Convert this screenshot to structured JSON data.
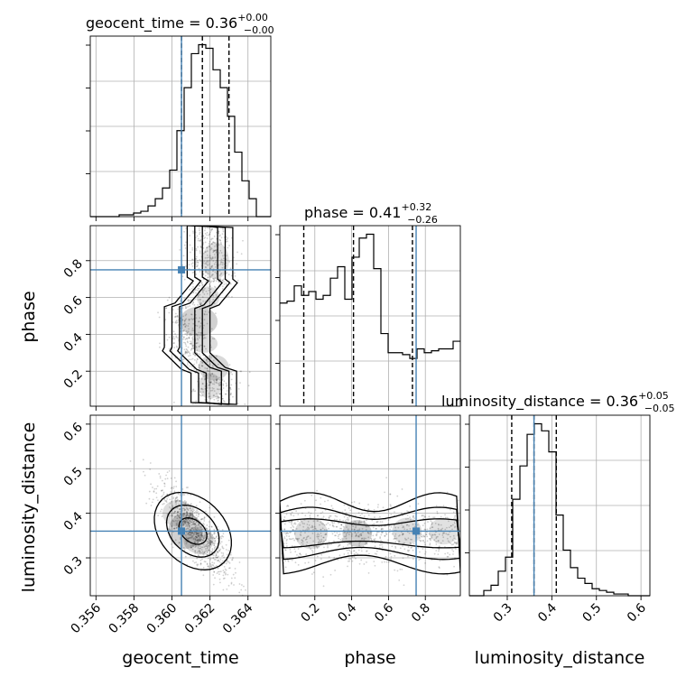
{
  "chart_data": {
    "type": "corner",
    "parameters": [
      "geocent_time",
      "phase",
      "luminosity_distance"
    ],
    "titles": [
      {
        "name": "geocent_time",
        "median": "0.36",
        "plus": "+0.00",
        "minus": "−0.00"
      },
      {
        "name": "phase",
        "median": "0.41",
        "plus": "+0.32",
        "minus": "−0.26"
      },
      {
        "name": "luminosity_distance",
        "median": "0.36",
        "plus": "+0.05",
        "minus": "−0.05"
      }
    ],
    "ranges": {
      "geocent_time": [
        0.3557,
        0.3652
      ],
      "phase": [
        0.01,
        0.99
      ],
      "luminosity_distance": [
        0.215,
        0.62
      ]
    },
    "ticks": {
      "geocent_time": [
        "0.356",
        "0.358",
        "0.360",
        "0.362",
        "0.364"
      ],
      "phase_x": [
        "0.2",
        "0.4",
        "0.6",
        "0.8"
      ],
      "phase_y": [
        "0.2",
        "0.4",
        "0.6",
        "0.8"
      ],
      "luminosity_distance_x": [
        "0.3",
        "0.4",
        "0.5",
        "0.6"
      ],
      "luminosity_distance_y": [
        "0.3",
        "0.4",
        "0.5",
        "0.6"
      ]
    },
    "truths": {
      "geocent_time": 0.3605,
      "phase": 0.75,
      "luminosity_distance": 0.36,
      "color": "#4682b4"
    },
    "quantiles": {
      "geocent_time": [
        0.3605,
        0.3616,
        0.363
      ],
      "phase": [
        0.14,
        0.41,
        0.73
      ],
      "luminosity_distance": [
        0.31,
        0.36,
        0.41
      ]
    },
    "histograms": {
      "geocent_time": {
        "edges_start": 0.3557,
        "edges_end": 0.3652,
        "counts": [
          0,
          0,
          0,
          0,
          1,
          1,
          2,
          3,
          6,
          10,
          16,
          26,
          48,
          72,
          91,
          96,
          94,
          82,
          72,
          56,
          36,
          20,
          10,
          0,
          0
        ]
      },
      "phase": {
        "edges_start": 0.01,
        "edges_end": 0.99,
        "counts": [
          54,
          55,
          63,
          58,
          60,
          56,
          58,
          67,
          73,
          56,
          78,
          88,
          90,
          72,
          38,
          28,
          28,
          27,
          25,
          30,
          28,
          29,
          30,
          30,
          34
        ]
      },
      "luminosity_distance": {
        "edges_start": 0.215,
        "edges_end": 0.62,
        "counts": [
          0,
          0,
          3,
          6,
          14,
          22,
          55,
          74,
          92,
          98,
          94,
          82,
          46,
          26,
          16,
          10,
          7,
          4,
          3,
          2,
          1,
          1,
          0,
          0,
          0
        ]
      }
    }
  }
}
